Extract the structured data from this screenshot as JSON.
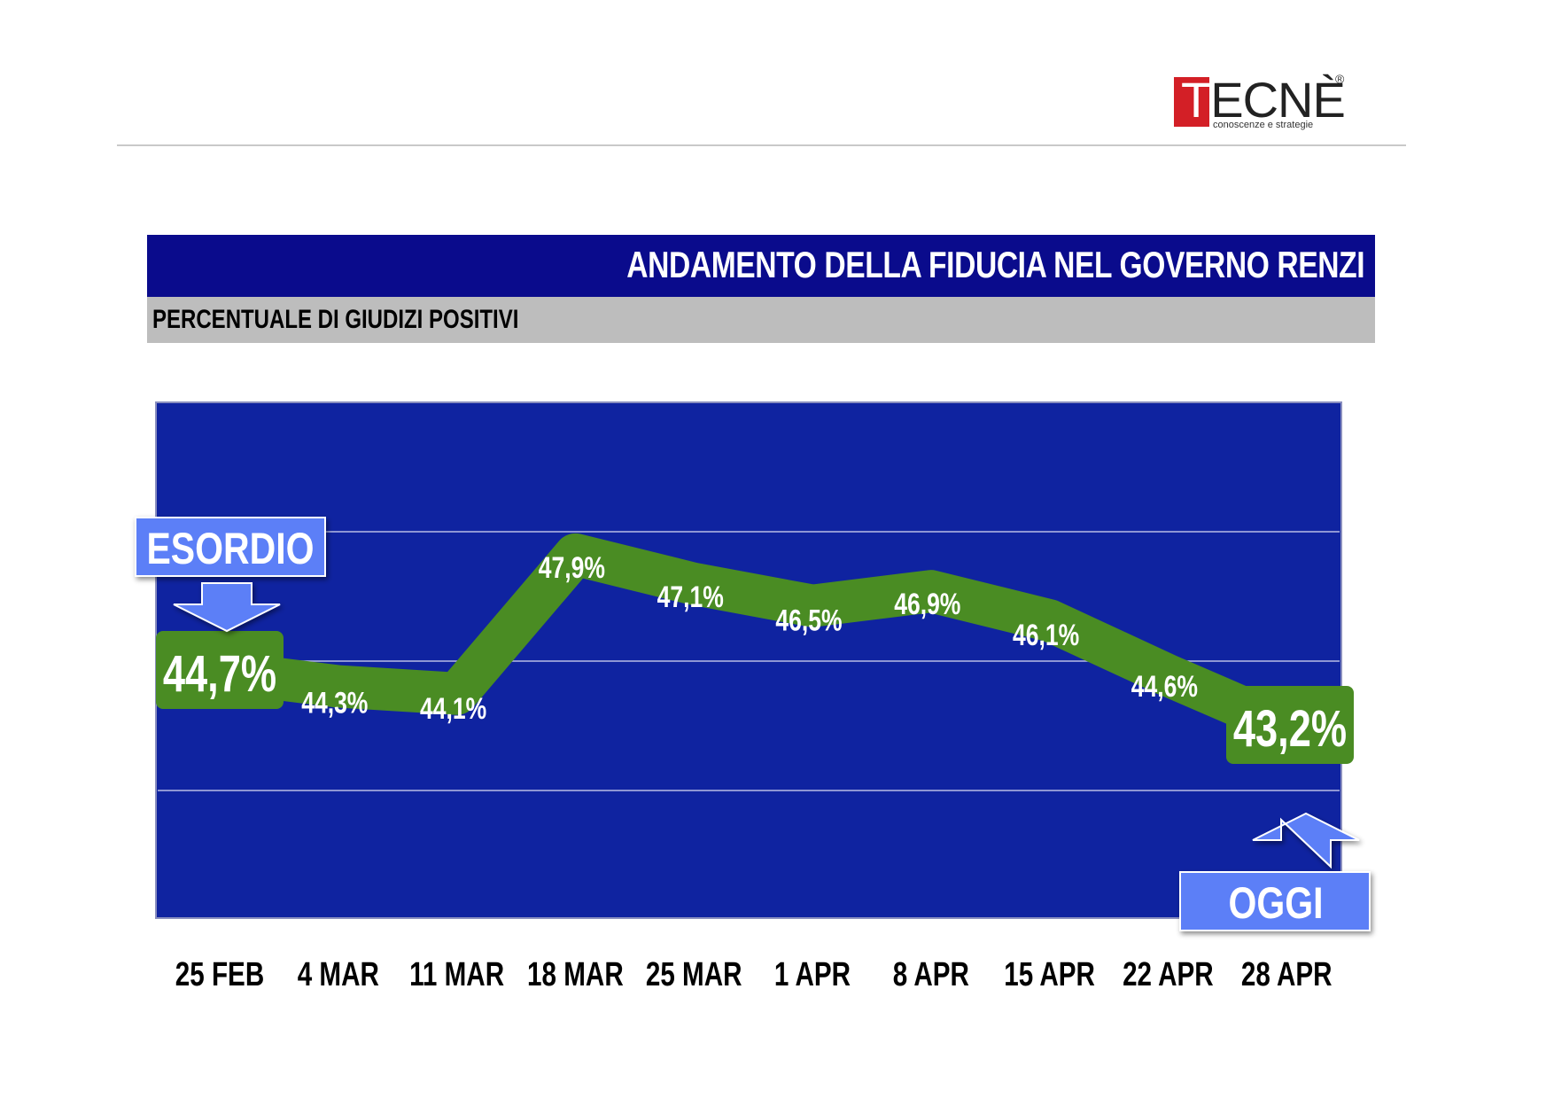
{
  "logo": {
    "text": "TECNÈ",
    "tagline": "conoscenze e strategie",
    "reg": "®"
  },
  "header": {
    "title": "ANDAMENTO DELLA FIDUCIA NEL GOVERNO RENZI",
    "subtitle": "PERCENTUALE DI GIUDIZI POSITIVI"
  },
  "callouts": {
    "start": "ESORDIO",
    "end": "OGGI"
  },
  "colors": {
    "title_bg": "#0a0b8c",
    "plot_bg": "#0f23a0",
    "line": "#4a8c23",
    "callout": "#5b7ff7",
    "subtitle_bg": "#bdbdbd"
  },
  "chart_data": {
    "type": "line",
    "categories": [
      "25 FEB",
      "4 MAR",
      "11 MAR",
      "18 MAR",
      "25 MAR",
      "1 APR",
      "8 APR",
      "15 APR",
      "22 APR",
      "28 APR"
    ],
    "values": [
      44.7,
      44.3,
      44.1,
      47.9,
      47.1,
      46.5,
      46.9,
      46.1,
      44.6,
      43.2
    ],
    "labels": [
      "44,7%",
      "44,3%",
      "44,1%",
      "47,9%",
      "47,1%",
      "46,5%",
      "46,9%",
      "46,1%",
      "44,6%",
      "43,2%"
    ],
    "grid": true
  }
}
